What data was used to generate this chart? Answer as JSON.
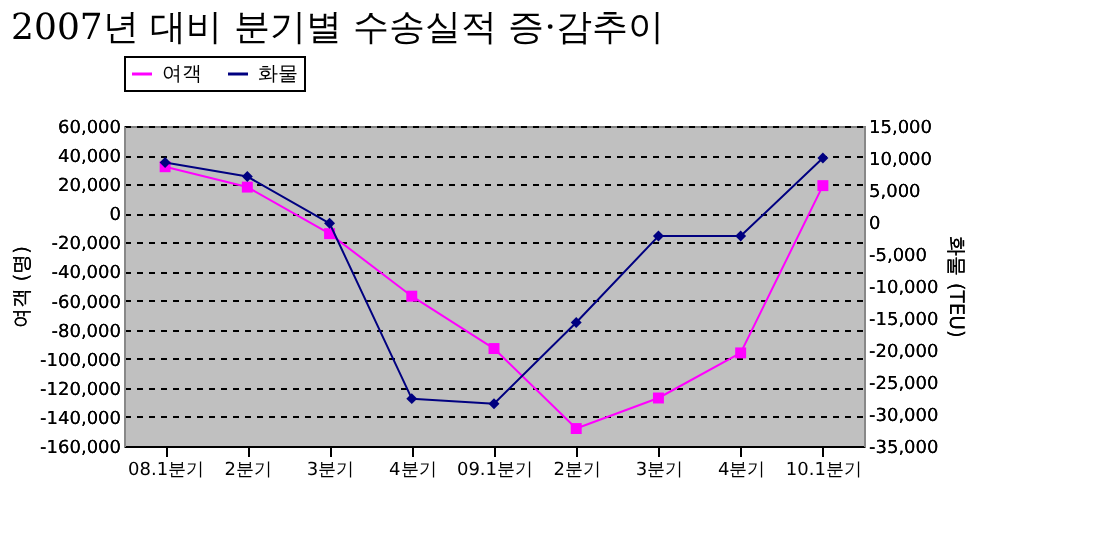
{
  "chart_data": {
    "type": "line",
    "title": "2007년 대비 분기별 수송실적 증·감추이",
    "ylabel": "여객 (명)",
    "y2label": "화물 (TEU)",
    "categories": [
      "08.1분기",
      "2분기",
      "3분기",
      "4분기",
      "09.1분기",
      "2분기",
      "3분기",
      "4분기",
      "10.1분기"
    ],
    "series": [
      {
        "name": "여객",
        "color": "#ff00ff",
        "marker": "square",
        "values": [
          32000,
          18000,
          -14000,
          -57000,
          -93000,
          -148000,
          -127000,
          -96000,
          19000
        ]
      },
      {
        "name": "화물",
        "color": "#000080",
        "marker": "diamond",
        "axis": "y2",
        "values": [
          9300,
          7100,
          -200,
          -27600,
          -28400,
          -15700,
          -2200,
          -2200,
          10000
        ]
      }
    ],
    "ylim": [
      -160000,
      60000
    ],
    "yticks": [
      {
        "value": -160000,
        "label": "-160,000"
      },
      {
        "value": -140000,
        "label": "-140,000"
      },
      {
        "value": -120000,
        "label": "-120,000"
      },
      {
        "value": -100000,
        "label": "-100,000"
      },
      {
        "value": -80000,
        "label": "-80,000"
      },
      {
        "value": -60000,
        "label": "-60,000"
      },
      {
        "value": -40000,
        "label": "-40,000"
      },
      {
        "value": -20000,
        "label": "-20,000"
      },
      0,
      {
        "value": 20000,
        "label": "20,000"
      },
      {
        "value": 40000,
        "label": "40,000"
      },
      {
        "value": 60000,
        "label": "60,000"
      }
    ],
    "y2lim": [
      -35000,
      15000
    ],
    "y2ticks": [
      {
        "value": -35000,
        "label": "-35,000"
      },
      {
        "value": -30000,
        "label": "-30,000"
      },
      {
        "value": -25000,
        "label": "-25,000"
      },
      {
        "value": -20000,
        "label": "-20,000"
      },
      {
        "value": -15000,
        "label": "-15,000"
      },
      {
        "value": -10000,
        "label": "-10,000"
      },
      {
        "value": -5000,
        "label": "-5,000"
      },
      0,
      {
        "value": 5000,
        "label": "5,000"
      },
      {
        "value": 10000,
        "label": "10,000"
      },
      {
        "value": 15000,
        "label": "15,000"
      }
    ],
    "grid": "y",
    "legend": "top",
    "line_style": "solid"
  }
}
